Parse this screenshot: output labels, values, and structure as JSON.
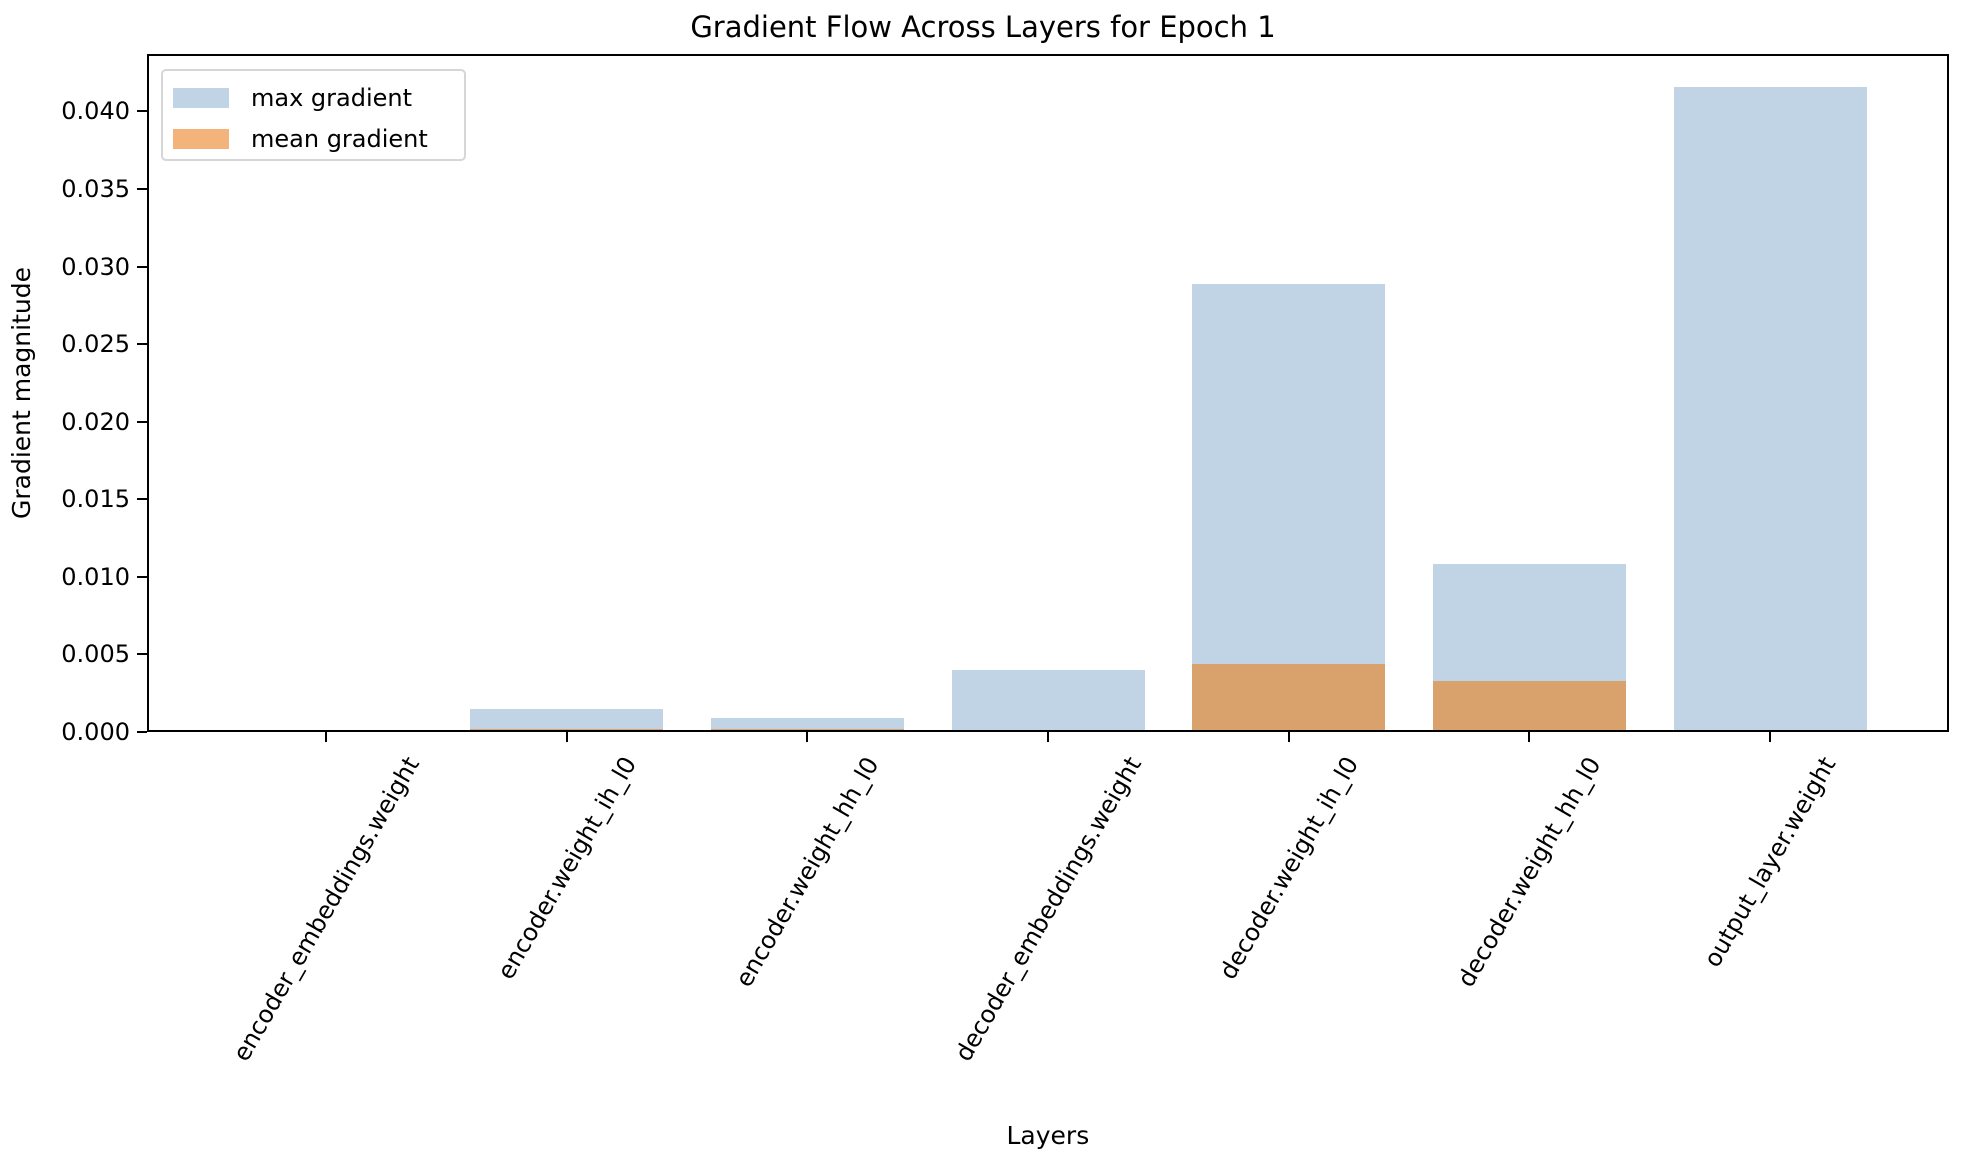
{
  "chart_data": {
    "type": "bar",
    "title": "Gradient Flow Across Layers for Epoch 1",
    "xlabel": "Layers",
    "ylabel": "Gradient magnitude",
    "ylim": [
      0,
      0.0437
    ],
    "grid": false,
    "legend_position": "upper left",
    "categories": [
      "encoder_embeddings.weight",
      "encoder.weight_ih_l0",
      "encoder.weight_hh_l0",
      "decoder_embeddings.weight",
      "decoder.weight_ih_l0",
      "decoder.weight_hh_l0",
      "output_layer.weight"
    ],
    "series": [
      {
        "name": "max gradient",
        "color": "#c1d4e5",
        "legend_color": "#c1d4e5",
        "values": [
          0.0001,
          0.0015,
          0.0009,
          0.004,
          0.0289,
          0.0108,
          0.0416
        ]
      },
      {
        "name": "mean gradient",
        "color": "#d9a26d",
        "legend_color": "#f3b37b",
        "values": [
          0.0,
          0.0002,
          0.0002,
          0.0,
          0.0044,
          0.0033,
          0.0
        ]
      }
    ],
    "yticks": [
      "0.000",
      "0.005",
      "0.010",
      "0.015",
      "0.020",
      "0.025",
      "0.030",
      "0.035",
      "0.040"
    ],
    "ytick_values": [
      0,
      0.005,
      0.01,
      0.015,
      0.02,
      0.025,
      0.03,
      0.035,
      0.04
    ],
    "xtick_rotation_deg": 60
  },
  "legend": {
    "items": [
      {
        "label": "max gradient",
        "color": "#c1d4e5"
      },
      {
        "label": "mean gradient",
        "color": "#f3b37b"
      }
    ]
  }
}
